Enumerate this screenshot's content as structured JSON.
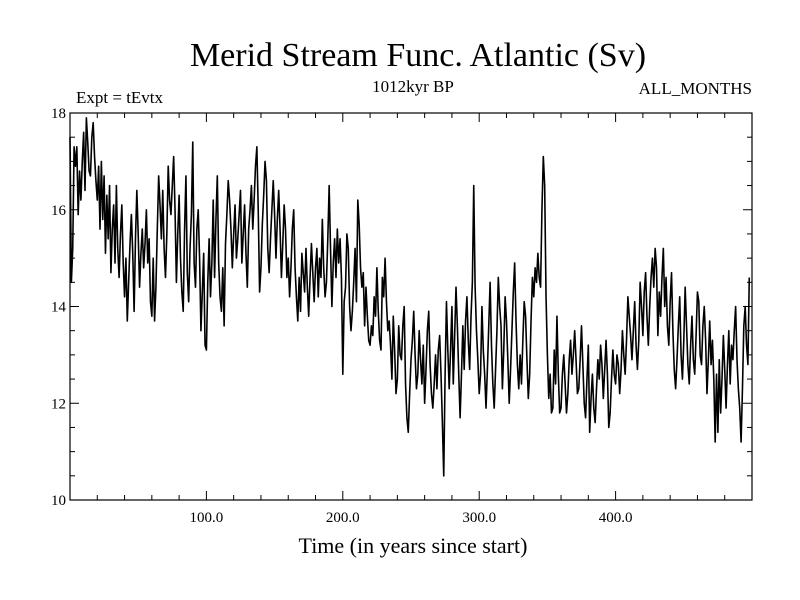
{
  "chart_data": {
    "type": "line",
    "title": "Merid Stream Func. Atlantic (Sv)",
    "left_label": "Expt = tEvtx",
    "center_label": "1012kyr BP",
    "right_label": "ALL_MONTHS",
    "xlabel": "Time (in years since start)",
    "ylabel": "",
    "xlim": [
      0,
      500
    ],
    "ylim": [
      10,
      18
    ],
    "x_ticks": [
      100,
      200,
      300,
      400
    ],
    "x_tick_labels": [
      "100.0",
      "200.0",
      "300.0",
      "400.0"
    ],
    "y_ticks": [
      10,
      12,
      14,
      16,
      18
    ],
    "y_tick_labels": [
      "10",
      "12",
      "14",
      "16",
      "18"
    ],
    "series": [
      {
        "name": "Merid Stream Func. Atlantic",
        "x_start": 0,
        "x_step": 1,
        "values": [
          17.5,
          14.5,
          15.2,
          17.3,
          16.9,
          17.3,
          15.9,
          16.8,
          16.2,
          17.0,
          17.6,
          16.4,
          17.9,
          17.4,
          16.8,
          16.7,
          17.5,
          17.8,
          17.1,
          16.6,
          16.2,
          16.9,
          15.6,
          17.0,
          15.8,
          16.7,
          15.1,
          16.3,
          15.4,
          16.5,
          14.7,
          15.6,
          16.1,
          14.9,
          16.5,
          15.2,
          14.6,
          15.5,
          16.1,
          14.9,
          14.2,
          15.0,
          13.7,
          14.5,
          15.3,
          15.9,
          15.1,
          13.9,
          15.4,
          16.4,
          15.5,
          14.4,
          15.1,
          15.6,
          14.8,
          15.3,
          16.0,
          14.9,
          15.4,
          14.1,
          13.8,
          15.0,
          13.7,
          14.4,
          15.6,
          16.7,
          16.1,
          15.4,
          16.4,
          15.2,
          14.6,
          15.5,
          16.9,
          16.2,
          15.9,
          16.5,
          17.1,
          16.0,
          14.5,
          15.5,
          16.3,
          15.0,
          14.3,
          13.9,
          15.6,
          16.7,
          14.7,
          14.1,
          15.2,
          15.9,
          17.4,
          14.9,
          14.4,
          15.6,
          16.0,
          15.0,
          13.5,
          14.3,
          15.1,
          13.2,
          13.1,
          14.5,
          15.4,
          14.2,
          14.9,
          16.2,
          14.6,
          15.8,
          16.7,
          14.9,
          14.2,
          13.9,
          14.8,
          13.6,
          15.3,
          15.9,
          16.6,
          16.2,
          15.6,
          14.8,
          15.5,
          16.1,
          15.0,
          15.4,
          15.9,
          16.4,
          14.9,
          15.5,
          16.1,
          15.1,
          14.4,
          15.6,
          16.0,
          16.5,
          15.6,
          16.2,
          16.9,
          17.3,
          16.0,
          14.3,
          14.8,
          15.7,
          16.3,
          17.0,
          16.6,
          15.2,
          14.7,
          15.4,
          16.0,
          16.6,
          15.9,
          15.0,
          15.8,
          16.4,
          15.6,
          14.6,
          15.3,
          16.1,
          15.6,
          14.6,
          15.0,
          14.2,
          14.8,
          15.6,
          16.0,
          14.8,
          14.2,
          13.7,
          14.6,
          13.9,
          15.1,
          14.7,
          14.3,
          15.2,
          14.4,
          13.8,
          14.6,
          15.3,
          14.7,
          14.1,
          14.8,
          15.2,
          14.2,
          15.0,
          14.6,
          15.8,
          14.8,
          14.2,
          14.5,
          15.4,
          16.5,
          15.2,
          14.0,
          14.9,
          15.4,
          14.6,
          15.6,
          14.9,
          15.4,
          14.6,
          12.6,
          14.1,
          14.4,
          15.5,
          15.2,
          14.0,
          13.5,
          13.9,
          14.5,
          15.2,
          14.1,
          16.2,
          15.7,
          14.8,
          14.4,
          14.7,
          13.6,
          14.4,
          13.8,
          13.3,
          13.2,
          13.6,
          13.4,
          14.2,
          13.8,
          14.8,
          13.9,
          13.3,
          13.1,
          14.6,
          14.2,
          15.0,
          14.1,
          13.5,
          13.7,
          13.2,
          12.5,
          13.8,
          13.1,
          12.2,
          12.5,
          13.6,
          13.0,
          12.9,
          13.6,
          14.0,
          12.4,
          11.7,
          11.4,
          12.2,
          12.9,
          13.3,
          13.9,
          13.0,
          12.3,
          12.6,
          13.5,
          12.9,
          12.4,
          13.2,
          12.0,
          12.7,
          13.5,
          13.9,
          12.8,
          12.2,
          11.9,
          12.4,
          13.0,
          12.3,
          13.1,
          13.4,
          12.6,
          11.6,
          10.5,
          12.6,
          14.1,
          13.1,
          12.3,
          13.1,
          14.0,
          12.4,
          13.4,
          14.4,
          13.6,
          12.6,
          11.7,
          12.6,
          13.6,
          12.7,
          13.7,
          14.2,
          13.3,
          12.7,
          13.8,
          14.5,
          16.5,
          14.4,
          13.5,
          12.9,
          12.2,
          12.6,
          14.0,
          13.1,
          12.6,
          11.9,
          12.7,
          13.6,
          14.5,
          13.2,
          12.4,
          11.9,
          12.7,
          13.5,
          14.6,
          14.0,
          13.6,
          12.3,
          13.1,
          14.2,
          13.7,
          12.9,
          12.0,
          12.7,
          13.5,
          14.3,
          14.9,
          13.7,
          12.8,
          12.3,
          13.0,
          12.4,
          13.3,
          14.1,
          13.8,
          12.9,
          12.1,
          12.6,
          13.7,
          14.6,
          14.2,
          14.8,
          14.5,
          15.1,
          14.6,
          14.4,
          16.0,
          17.1,
          16.5,
          14.2,
          13.0,
          12.1,
          12.6,
          11.8,
          11.9,
          13.1,
          12.4,
          13.8,
          12.6,
          11.8,
          11.9,
          12.6,
          13.0,
          12.4,
          11.8,
          12.2,
          12.9,
          13.3,
          12.6,
          13.0,
          13.5,
          12.9,
          12.2,
          12.3,
          12.9,
          13.6,
          12.8,
          12.0,
          11.7,
          12.5,
          13.2,
          11.4,
          12.1,
          12.6,
          11.9,
          11.6,
          12.3,
          12.9,
          12.5,
          13.2,
          12.8,
          12.1,
          12.7,
          13.3,
          12.6,
          11.5,
          11.8,
          12.5,
          13.1,
          12.6,
          12.4,
          13.0,
          12.8,
          12.2,
          12.7,
          13.5,
          13.0,
          12.6,
          13.3,
          14.2,
          13.8,
          13.4,
          12.9,
          13.5,
          14.1,
          13.2,
          12.7,
          13.3,
          14.5,
          14.0,
          13.4,
          14.3,
          14.7,
          13.8,
          13.2,
          14.0,
          14.6,
          15.0,
          14.4,
          15.2,
          14.8,
          13.4,
          14.3,
          13.8,
          14.6,
          15.2,
          14.0,
          14.6,
          13.6,
          13.2,
          14.1,
          14.7,
          13.5,
          12.7,
          12.3,
          12.9,
          13.6,
          14.2,
          13.0,
          12.5,
          13.3,
          14.4,
          13.6,
          12.8,
          12.4,
          13.2,
          13.8,
          12.9,
          12.6,
          13.4,
          14.3,
          14.1,
          13.0,
          12.8,
          13.6,
          14.0,
          13.3,
          12.2,
          12.9,
          13.7,
          12.8,
          13.3,
          12.5,
          11.2,
          12.6,
          11.4,
          12.9,
          11.8,
          12.5,
          13.4,
          12.7,
          11.9,
          12.8,
          13.5,
          12.4,
          13.2,
          12.9,
          13.5,
          14.0,
          12.9,
          12.3,
          11.9,
          11.2,
          12.3,
          13.6,
          14.0,
          13.2,
          12.8,
          14.6
        ]
      }
    ]
  }
}
